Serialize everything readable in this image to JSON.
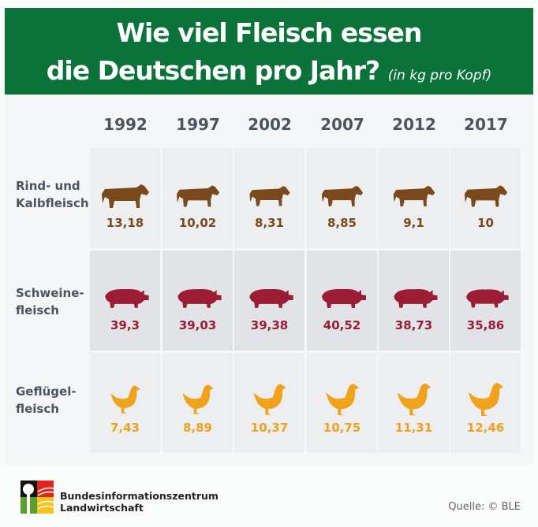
{
  "header": {
    "title_line1": "Wie viel Fleisch essen",
    "title_line2": "die Deutschen pro Jahr?",
    "unit": "(in kg pro Kopf)"
  },
  "chart_data": {
    "type": "table",
    "title": "Wie viel Fleisch essen die Deutschen pro Jahr? (in kg pro Kopf)",
    "categories": [
      "1992",
      "1997",
      "2002",
      "2007",
      "2012",
      "2017"
    ],
    "series": [
      {
        "name": "Rind- und Kalbfleisch",
        "icon": "cow-icon",
        "color": "#7a4a1c",
        "labels": [
          "13,18",
          "10,02",
          "8,31",
          "8,85",
          "9,1",
          "10"
        ],
        "values": [
          13.18,
          10.02,
          8.31,
          8.85,
          9.1,
          10
        ]
      },
      {
        "name": "Schweine-fleisch",
        "icon": "pig-icon",
        "color": "#9b1c33",
        "labels": [
          "39,3",
          "39,03",
          "39,38",
          "40,52",
          "38,73",
          "35,86"
        ],
        "values": [
          39.3,
          39.03,
          39.38,
          40.52,
          38.73,
          35.86
        ]
      },
      {
        "name": "Geflügel-fleisch",
        "icon": "chicken-icon",
        "color": "#f0a21c",
        "labels": [
          "7,43",
          "8,89",
          "10,37",
          "10,75",
          "11,31",
          "12,46"
        ],
        "values": [
          7.43,
          8.89,
          10.37,
          10.75,
          11.31,
          12.46
        ]
      }
    ]
  },
  "rows": [
    {
      "l1": "Rind- und",
      "l2": "Kalbfleisch"
    },
    {
      "l1": "Schweine-",
      "l2": "fleisch"
    },
    {
      "l1": "Geflügel-",
      "l2": "fleisch"
    }
  ],
  "footer": {
    "org_line1": "Bundesinformationszentrum",
    "org_line2": "Landwirtschaft",
    "source": "Quelle: © BLE"
  }
}
